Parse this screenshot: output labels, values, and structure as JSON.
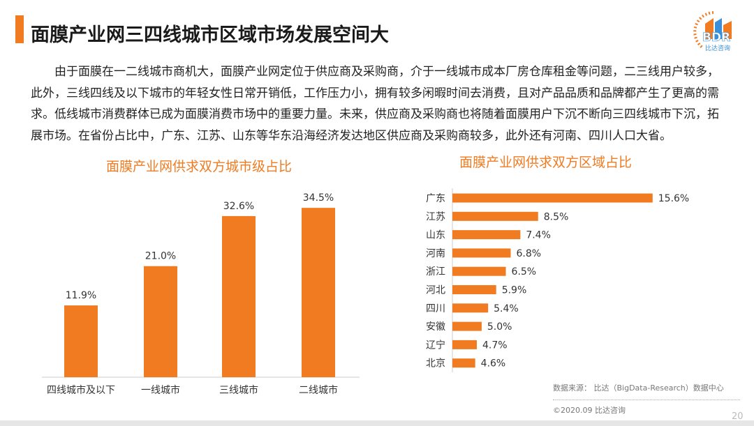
{
  "header": {
    "title": "面膜产业网三四线城市区域市场发展空间大",
    "logo_text": "BDR",
    "logo_subtext": "比达咨询"
  },
  "body_text": "由于面膜在一二线城市商机大，面膜产业网定位于供应商及采购商，介于一线城市成本厂房仓库租金等问题，二三线用户较多，此外，三线四线及以下城市的年轻女性日常开销低，工作压力小，拥有较多闲暇时间去消费，且对产品品质和品牌都产生了更高的需求。低线城市消费群体已成为面膜消费市场中的重要力量。未来，供应商及采购商也将随着面膜用户下沉不断向三四线城市下沉，拓展市场。在省份占比中，广东、江苏、山东等华东沿海经济发达地区供应商及采购商较多，此外还有河南、四川人口大省。",
  "colors": {
    "accent": "#f07b21"
  },
  "chart_data": [
    {
      "type": "bar",
      "title": "面膜产业网供求双方城市级占比",
      "categories": [
        "四线城市及以下",
        "一线城市",
        "三线城市",
        "二线城市"
      ],
      "values": [
        11.9,
        21.0,
        32.6,
        34.5
      ],
      "labels": [
        "11.9%",
        "21.0%",
        "32.6%",
        "34.5%"
      ],
      "unit": "%",
      "grid": false
    },
    {
      "type": "bar",
      "orientation": "horizontal",
      "title": "面膜产业网供求双方区域占比",
      "categories": [
        "广东",
        "江苏",
        "山东",
        "河南",
        "浙江",
        "河北",
        "四川",
        "安徽",
        "辽宁",
        "北京"
      ],
      "values": [
        15.6,
        8.5,
        7.4,
        6.8,
        6.5,
        5.9,
        5.4,
        5.0,
        4.7,
        4.6
      ],
      "labels": [
        "15.6%",
        "8.5%",
        "7.4%",
        "6.8%",
        "6.5%",
        "5.9%",
        "5.4%",
        "5.0%",
        "4.7%",
        "4.6%"
      ],
      "unit": "%",
      "grid": false
    }
  ],
  "footer": {
    "source": "数据来源： 比达（BigData-Research）数据中心",
    "copyright": "©2020.09 比达咨询",
    "page": "20"
  }
}
